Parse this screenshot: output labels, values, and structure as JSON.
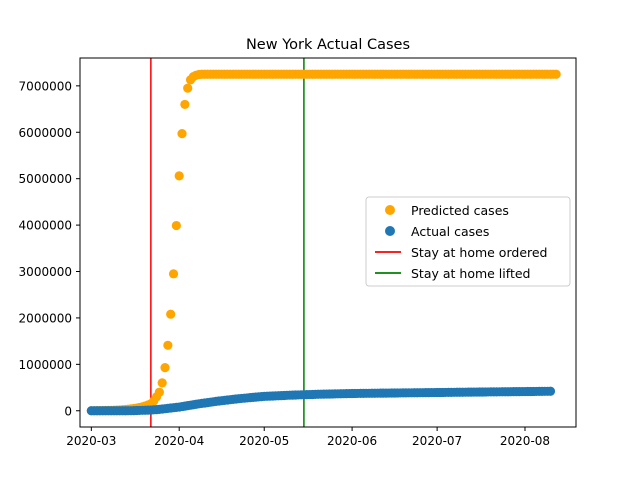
{
  "chart_data": {
    "type": "scatter",
    "title": "New York Actual Cases",
    "xlabel": "",
    "ylabel": "",
    "x_axis": {
      "type": "date",
      "range": [
        "2020-02-26",
        "2020-08-19"
      ],
      "tick_labels": [
        "2020-03",
        "2020-04",
        "2020-05",
        "2020-06",
        "2020-07",
        "2020-08"
      ],
      "tick_dates": [
        "2020-03-01",
        "2020-04-01",
        "2020-05-01",
        "2020-06-01",
        "2020-07-01",
        "2020-08-01"
      ]
    },
    "y_axis": {
      "range": [
        -350000,
        7600000
      ],
      "tick_labels": [
        "0",
        "1000000",
        "2000000",
        "3000000",
        "4000000",
        "5000000",
        "6000000",
        "7000000"
      ],
      "tick_values": [
        0,
        1000000,
        2000000,
        3000000,
        4000000,
        5000000,
        6000000,
        7000000
      ]
    },
    "grid": false,
    "legend_placement": "center-right",
    "series": [
      {
        "name": "Predicted cases",
        "color": "#ffa500",
        "start_date": "2020-03-01",
        "end_date": "2020-08-12",
        "values": [
          1000,
          1500,
          2200,
          3100,
          4200,
          5600,
          7400,
          9500,
          12000,
          15000,
          18000,
          22000,
          27000,
          33000,
          40000,
          48000,
          58000,
          70000,
          85000,
          103000,
          125000,
          150000,
          210000,
          300000,
          400000,
          600000,
          930000,
          1410000,
          2080000,
          2950000,
          3990000,
          5060000,
          5970000,
          6600000,
          6950000,
          7130000,
          7200000,
          7230000,
          7245000,
          7250000
        ],
        "plateau_value": 7250000
      },
      {
        "name": "Actual cases",
        "color": "#1f77b4",
        "start_date": "2020-03-01",
        "end_date": "2020-08-10",
        "knots": [
          [
            "2020-03-01",
            0
          ],
          [
            "2020-03-15",
            1000
          ],
          [
            "2020-03-22",
            15000
          ],
          [
            "2020-03-25",
            30000
          ],
          [
            "2020-04-01",
            80000
          ],
          [
            "2020-04-08",
            150000
          ],
          [
            "2020-04-15",
            210000
          ],
          [
            "2020-04-22",
            260000
          ],
          [
            "2020-05-01",
            310000
          ],
          [
            "2020-05-10",
            335000
          ],
          [
            "2020-05-20",
            355000
          ],
          [
            "2020-06-01",
            372000
          ],
          [
            "2020-06-15",
            382000
          ],
          [
            "2020-07-01",
            393000
          ],
          [
            "2020-07-15",
            403000
          ],
          [
            "2020-08-01",
            414000
          ],
          [
            "2020-08-10",
            420000
          ]
        ]
      }
    ],
    "vertical_lines": [
      {
        "name": "Stay at home ordered",
        "date": "2020-03-22",
        "color": "#ff0000"
      },
      {
        "name": "Stay at home lifted",
        "date": "2020-05-15",
        "color": "#008000"
      }
    ]
  }
}
